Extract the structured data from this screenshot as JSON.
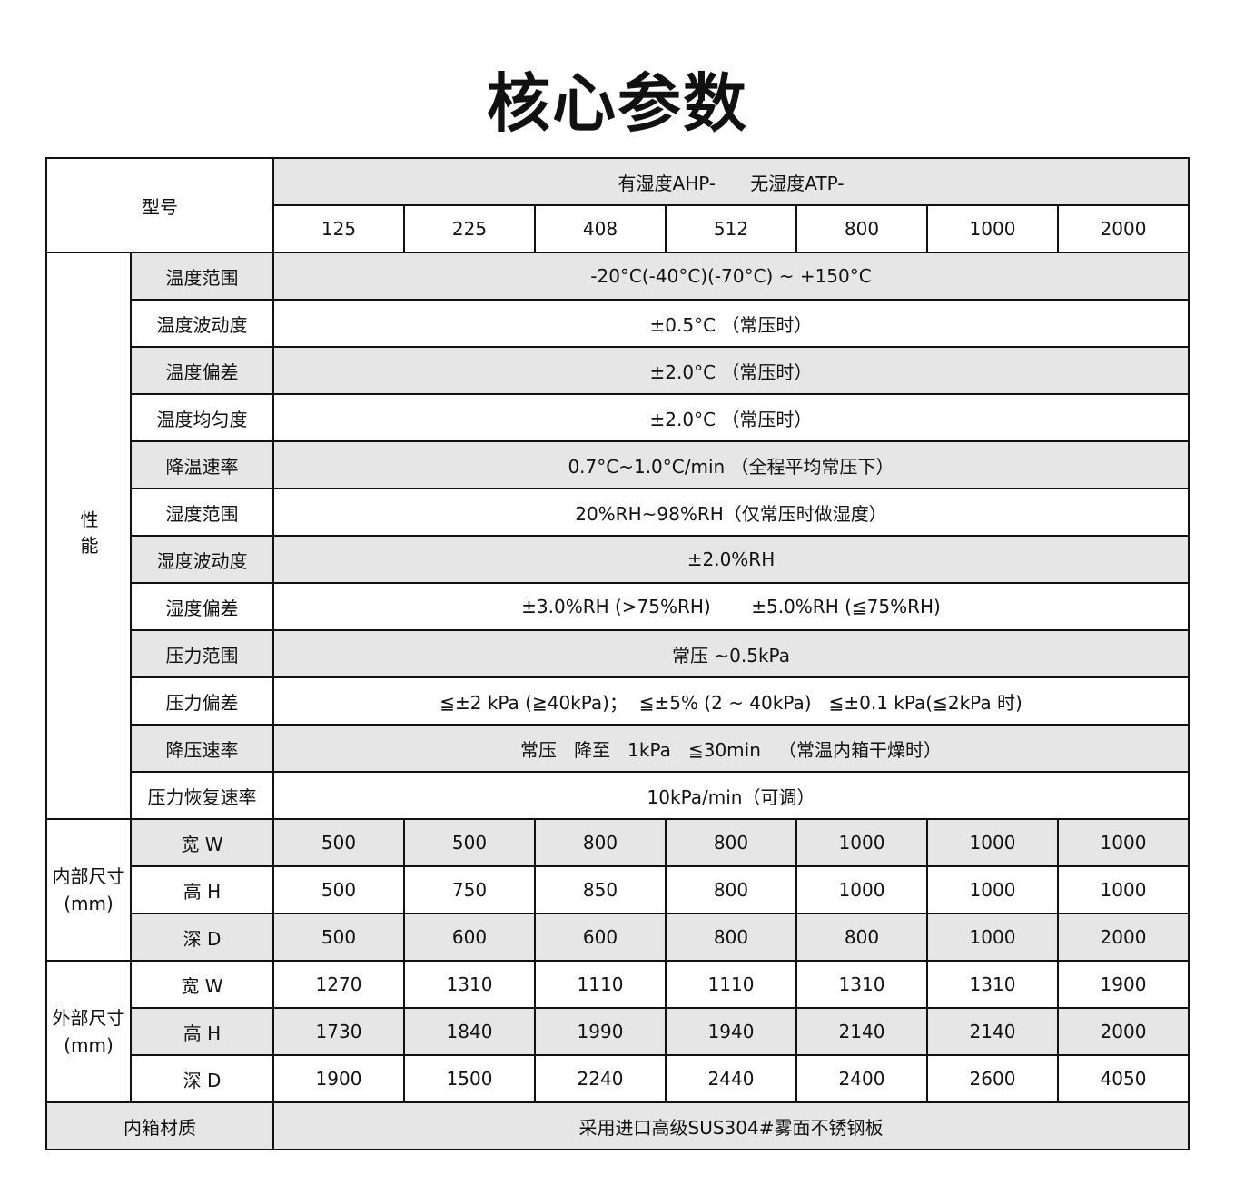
{
  "title": "核心参数",
  "header": {
    "model_label": "型号",
    "series": "有湿度AHP-      无湿度ATP-",
    "models": [
      "125",
      "225",
      "408",
      "512",
      "800",
      "1000",
      "2000"
    ]
  },
  "performance": {
    "group_label": "性能",
    "rows": [
      {
        "label": "温度范围",
        "value": "-20°C(-40°C)(-70°C) ~ +150°C"
      },
      {
        "label": "温度波动度",
        "value": "±0.5°C （常压时）"
      },
      {
        "label": "温度偏差",
        "value": "±2.0°C （常压时）"
      },
      {
        "label": "温度均匀度",
        "value": "±2.0°C （常压时）"
      },
      {
        "label": "降温速率",
        "value": "0.7°C~1.0°C/min （全程平均常压下）"
      },
      {
        "label": "湿度范围",
        "value": "20%RH~98%RH（仅常压时做湿度）"
      },
      {
        "label": "湿度波动度",
        "value": "±2.0%RH"
      },
      {
        "label": "湿度偏差",
        "value": "±3.0%RH (>75%RH)       ±5.0%RH (≦75%RH)"
      },
      {
        "label": "压力范围",
        "value": "常压 ~0.5kPa"
      },
      {
        "label": "压力偏差",
        "value": "≦±2 kPa (≧40kPa)；  ≦±5% (2 ~ 40kPa)   ≦±0.1 kPa(≦2kPa 时)"
      },
      {
        "label": "降压速率",
        "value": "常压   降至   1kPa   ≦30min   （常温内箱干燥时）"
      },
      {
        "label": "压力恢复速率",
        "value": "10kPa/min（可调）"
      }
    ]
  },
  "inner": {
    "group_label": "内部尺寸\n(mm)",
    "rows": [
      {
        "label": "宽 W",
        "values": [
          "500",
          "500",
          "800",
          "800",
          "1000",
          "1000",
          "1000"
        ]
      },
      {
        "label": "高 H",
        "values": [
          "500",
          "750",
          "850",
          "800",
          "1000",
          "1000",
          "1000"
        ]
      },
      {
        "label": "深 D",
        "values": [
          "500",
          "600",
          "600",
          "800",
          "800",
          "1000",
          "2000"
        ]
      }
    ]
  },
  "outer": {
    "group_label": "外部尺寸\n(mm)",
    "rows": [
      {
        "label": "宽 W",
        "values": [
          "1270",
          "1310",
          "1110",
          "1110",
          "1310",
          "1310",
          "1900"
        ]
      },
      {
        "label": "高 H",
        "values": [
          "1730",
          "1840",
          "1990",
          "1940",
          "2140",
          "2140",
          "2000"
        ]
      },
      {
        "label": "深 D",
        "values": [
          "1900",
          "1500",
          "2240",
          "2440",
          "2400",
          "2600",
          "4050"
        ]
      }
    ]
  },
  "material": {
    "label": "内箱材质",
    "value": "采用进口高级SUS304#雾面不锈钢板"
  },
  "colors": {
    "shade": "#e6e6e6",
    "border": "#111111"
  }
}
